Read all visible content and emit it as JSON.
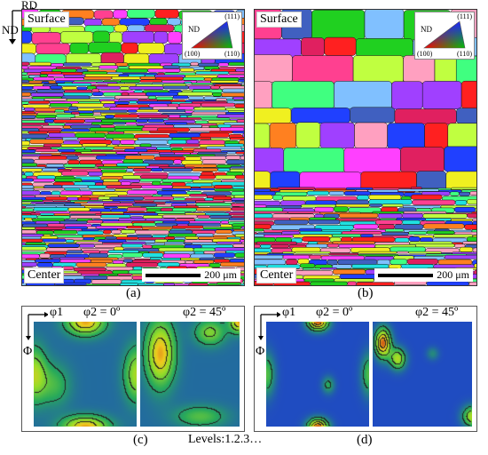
{
  "axes": {
    "rd": "RD",
    "nd": "ND"
  },
  "panel_a": {
    "top_label": "Surface",
    "bottom_label": "Center",
    "scale": "200 μm",
    "caption": "(a)"
  },
  "panel_b": {
    "top_label": "Surface",
    "bottom_label": "Center",
    "scale": "200 μm",
    "caption": "(b)"
  },
  "ipf_legend": {
    "nd": "ND",
    "v111": "(111)",
    "v100": "(100)",
    "v110": "(110)"
  },
  "odf_c": {
    "phi1": "φ1",
    "Phi": "Φ",
    "phi2_a": "φ2 = 0º",
    "phi2_b": "φ2 = 45º",
    "caption": "(c)"
  },
  "odf_d": {
    "phi1": "φ1",
    "Phi": "Φ",
    "phi2_a": "φ2 = 0º",
    "phi2_b": "φ2 = 45º",
    "caption": "(d)"
  },
  "levels": "Levels:1.2.3…"
}
